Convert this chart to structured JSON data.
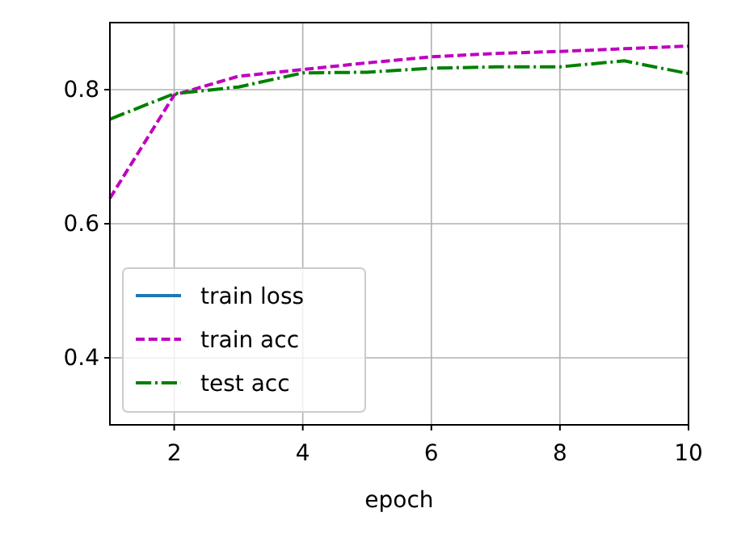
{
  "chart_data": {
    "type": "line",
    "xlabel": "epoch",
    "x": [
      1,
      2,
      3,
      4,
      5,
      6,
      7,
      8,
      9,
      10
    ],
    "xlim": [
      1,
      10
    ],
    "xticks": [
      2,
      4,
      6,
      8,
      10
    ],
    "ylim": [
      0.3,
      0.9
    ],
    "yticks": [
      0.4,
      0.6,
      0.8
    ],
    "grid": true,
    "legend": "bottom left",
    "marker": "none",
    "series": [
      {
        "name": "train loss",
        "color": "#1f77b4",
        "line_style": "solid",
        "values": [
          null,
          null,
          null,
          null,
          null,
          null,
          null,
          null,
          null,
          null
        ]
      },
      {
        "name": "train acc",
        "color": "#bf00bf",
        "line_style": "dashed",
        "values": [
          0.638,
          0.792,
          0.82,
          0.83,
          0.84,
          0.849,
          0.854,
          0.857,
          0.861,
          0.865
        ]
      },
      {
        "name": "test acc",
        "color": "#008000",
        "line_style": "dashdot",
        "values": [
          0.756,
          0.794,
          0.804,
          0.825,
          0.826,
          0.832,
          0.834,
          0.834,
          0.843,
          0.824
        ]
      }
    ]
  }
}
